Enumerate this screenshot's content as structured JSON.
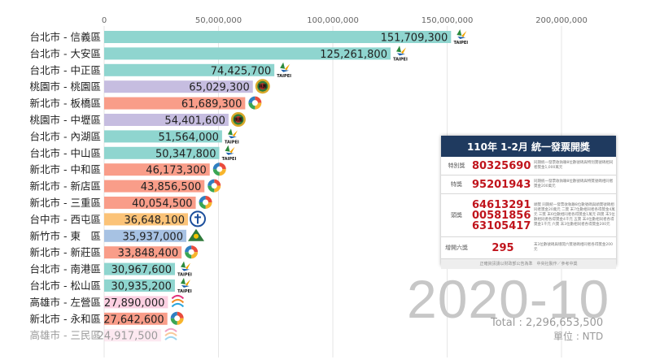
{
  "chart_data": {
    "type": "bar",
    "orientation": "horizontal",
    "xlim": [
      0,
      200000000
    ],
    "ticks": [
      "0",
      "50,000,000",
      "100,000,000",
      "150,000,000",
      "200,000,000"
    ],
    "grid": true,
    "categories": [
      "台北市 - 信義區",
      "台北市 - 大安區",
      "台北市 - 中正區",
      "桃園市 - 桃園區",
      "新北市 - 板橋區",
      "桃園市 - 中壢區",
      "台北市 - 內湖區",
      "台北市 - 中山區",
      "新北市 - 中和區",
      "新北市 - 新店區",
      "新北市 - 三重區",
      "台中市 - 西屯區",
      "新竹市 - 東　區",
      "新北市 - 新莊區",
      "台北市 - 南港區",
      "台北市 - 松山區",
      "高雄市 - 左營區",
      "新北市 - 永和區",
      "高雄市 - 三民區"
    ],
    "values": [
      151709300,
      125261800,
      74425700,
      65029300,
      61689300,
      54401600,
      51564000,
      50347800,
      46173300,
      43856500,
      40054500,
      36648100,
      35937000,
      33848400,
      30967600,
      30935200,
      27890000,
      27642600,
      24917500
    ],
    "value_labels": [
      "151,709,300",
      "125,261,800",
      "74,425,700",
      "65,029,300",
      "61,689,300",
      "54,401,600",
      "51,564,000",
      "50,347,800",
      "46,173,300",
      "43,856,500",
      "40,054,500",
      "36,648,100",
      "35,937,000",
      "33,848,400",
      "30,967,600",
      "30,935,200",
      "27,890,000",
      "27,642,600",
      "24,917,500"
    ],
    "city": [
      "taipei",
      "taipei",
      "taipei",
      "taoyuan",
      "newtaipei",
      "taoyuan",
      "taipei",
      "taipei",
      "newtaipei",
      "newtaipei",
      "newtaipei",
      "taichung",
      "hsinchu",
      "newtaipei",
      "taipei",
      "taipei",
      "kaohsiung",
      "newtaipei",
      "kaohsiung"
    ],
    "colors": {
      "taipei": "#8fd5cf",
      "taoyuan": "#c6bde0",
      "newtaipei": "#f99d89",
      "taichung": "#fbc378",
      "hsinchu": "#a7c2e3",
      "kaohsiung": "#fcd0e2"
    },
    "emblem_icons": {
      "taipei": "taipei-emblem-icon",
      "taoyuan": "taoyuan-emblem-icon",
      "newtaipei": "newtaipei-emblem-icon",
      "taichung": "taichung-emblem-icon",
      "hsinchu": "hsinchu-emblem-icon",
      "kaohsiung": "kaohsiung-emblem-icon"
    },
    "emblem_text": {
      "taipei": "TAIPEI",
      "taoyuan": "桃園"
    }
  },
  "period": "2020-10",
  "total_line": "Total : 2,296,653,500",
  "unit_line": "單位 : NTD",
  "panel": {
    "title": "110年  1-2月  統一發票開獎",
    "rows": [
      {
        "name": "特別獎",
        "numbers": [
          "80325690"
        ],
        "desc": "同期統一發票收執聯8位數號碼與特別獎號碼相同者獎金1,000萬元"
      },
      {
        "name": "特獎",
        "numbers": [
          "95201943"
        ],
        "desc": "同期統一發票收執聯8位數號碼與特獎號碼相同者獎金200萬元"
      },
      {
        "name": "頭獎",
        "numbers": [
          "64613291",
          "00581856",
          "63105417"
        ],
        "desc": "頭獎 同期統一發票收執聯8位數號碼與頭獎號碼相同者獎金20萬元 二獎 末7位數相同者各得獎金4萬元 三獎 末6位數相同者各得獎金1萬元 四獎 末5位數相同者各得獎金4千元 五獎 末4位數相同者各得獎金1千元 六獎 末3位數相同者各得獎金200元"
      },
      {
        "name": "增開六獎",
        "numbers": [
          "295"
        ],
        "desc": "末3位數號碼與增開六獎號碼相同者各得獎金200元"
      }
    ],
    "footer": "正確資訊請以財政部公告為準　中央社製作／參考中獎"
  }
}
